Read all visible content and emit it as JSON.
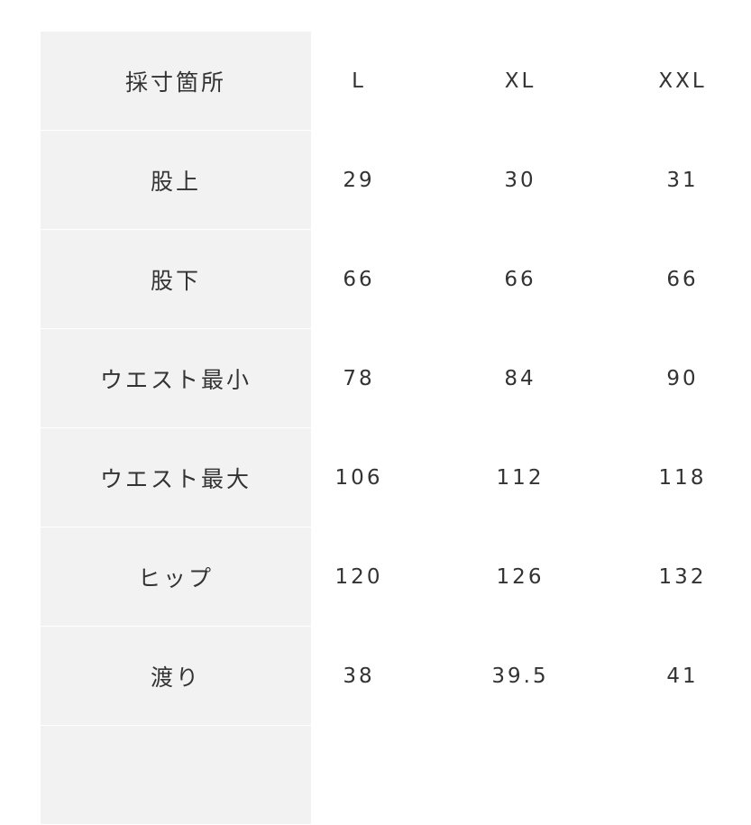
{
  "table": {
    "header": {
      "label": "採寸箇所",
      "sizes": [
        "L",
        "XL",
        "XXL"
      ]
    },
    "rows": [
      {
        "label": "股上",
        "values": [
          "29",
          "30",
          "31"
        ]
      },
      {
        "label": "股下",
        "values": [
          "66",
          "66",
          "66"
        ]
      },
      {
        "label": "ウエスト最小",
        "values": [
          "78",
          "84",
          "90"
        ]
      },
      {
        "label": "ウエスト最大",
        "values": [
          "106",
          "112",
          "118"
        ]
      },
      {
        "label": "ヒップ",
        "values": [
          "120",
          "126",
          "132"
        ]
      },
      {
        "label": "渡り",
        "values": [
          "38",
          "39.5",
          "41"
        ]
      }
    ],
    "colors": {
      "label_bg": "#f2f2f2",
      "text": "#333333"
    }
  }
}
